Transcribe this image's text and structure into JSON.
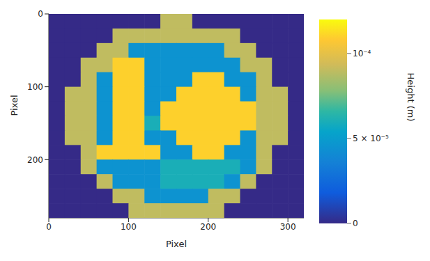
{
  "chart_data": {
    "type": "heatmap",
    "xlabel": "Pixel",
    "ylabel": "Pixel",
    "xlim": [
      0,
      320
    ],
    "ylim": [
      0,
      280
    ],
    "xticks": [
      0,
      100,
      200,
      300
    ],
    "yticks": [
      0,
      100,
      200
    ],
    "cells": {
      "x": [
        10,
        30,
        50,
        70,
        90,
        110,
        130,
        150,
        170,
        190,
        210,
        230,
        250,
        270,
        290,
        310
      ],
      "y": [
        10,
        30,
        50,
        70,
        90,
        110,
        130,
        150,
        170,
        190,
        210,
        230,
        250,
        270
      ],
      "values": [
        [
          0,
          0,
          0,
          0,
          0,
          0,
          0,
          9e-05,
          9e-05,
          0,
          0,
          0,
          0,
          0,
          0,
          0
        ],
        [
          0,
          0,
          0,
          0,
          9e-05,
          9e-05,
          9e-05,
          9e-05,
          9e-05,
          9e-05,
          9e-05,
          9e-05,
          0,
          0,
          0,
          0
        ],
        [
          0,
          0,
          0,
          9e-05,
          9e-05,
          4.5e-05,
          4.5e-05,
          4.5e-05,
          4.5e-05,
          4.5e-05,
          4.5e-05,
          9e-05,
          9e-05,
          0,
          0,
          0
        ],
        [
          0,
          0,
          9e-05,
          9e-05,
          0.00011,
          0.00011,
          4.5e-05,
          4.5e-05,
          4.5e-05,
          4.5e-05,
          4.5e-05,
          4.5e-05,
          9e-05,
          9e-05,
          0,
          0
        ],
        [
          0,
          0,
          9e-05,
          4.5e-05,
          0.00011,
          0.00011,
          4.5e-05,
          4.5e-05,
          4.5e-05,
          0.00011,
          0.00011,
          4.5e-05,
          4.5e-05,
          9e-05,
          0,
          0
        ],
        [
          0,
          9e-05,
          9e-05,
          4.5e-05,
          0.00011,
          0.00011,
          4.5e-05,
          4.5e-05,
          0.00011,
          0.00011,
          0.00011,
          0.00011,
          4.5e-05,
          9e-05,
          9e-05,
          0
        ],
        [
          0,
          9e-05,
          9e-05,
          4.5e-05,
          0.00011,
          0.00011,
          4.5e-05,
          0.00011,
          0.00011,
          0.00011,
          0.00011,
          0.00011,
          0.00011,
          9e-05,
          9e-05,
          0
        ],
        [
          0,
          9e-05,
          9e-05,
          4.5e-05,
          0.00011,
          0.00011,
          6e-05,
          0.00011,
          0.00011,
          0.00011,
          0.00011,
          0.00011,
          0.00011,
          9e-05,
          9e-05,
          0
        ],
        [
          0,
          9e-05,
          9e-05,
          4.5e-05,
          0.00011,
          0.00011,
          4.5e-05,
          4.5e-05,
          0.00011,
          0.00011,
          0.00011,
          0.00011,
          4.5e-05,
          9e-05,
          9e-05,
          0
        ],
        [
          0,
          0,
          9e-05,
          0.00011,
          0.00011,
          0.00011,
          0.00011,
          4.5e-05,
          4.5e-05,
          0.00011,
          0.00011,
          4.5e-05,
          4.5e-05,
          9e-05,
          0,
          0
        ],
        [
          0,
          0,
          9e-05,
          4.5e-05,
          4.5e-05,
          4.5e-05,
          4.5e-05,
          6e-05,
          6e-05,
          6e-05,
          6e-05,
          6e-05,
          4.5e-05,
          9e-05,
          0,
          0
        ],
        [
          0,
          0,
          0,
          9e-05,
          4.5e-05,
          4.5e-05,
          4.5e-05,
          6e-05,
          6e-05,
          6e-05,
          6e-05,
          4.5e-05,
          9e-05,
          0,
          0,
          0
        ],
        [
          0,
          0,
          0,
          0,
          9e-05,
          9e-05,
          4.5e-05,
          4.5e-05,
          4.5e-05,
          4.5e-05,
          9e-05,
          9e-05,
          0,
          0,
          0,
          0
        ],
        [
          0,
          0,
          0,
          0,
          0,
          9e-05,
          9e-05,
          9e-05,
          9e-05,
          9e-05,
          9e-05,
          0,
          0,
          0,
          0,
          0
        ]
      ]
    },
    "colorbar": {
      "label": "Height (m)",
      "range": [
        0,
        0.00012
      ],
      "ticks": [
        0,
        {
          "value": 5e-05,
          "label": "5 × 10⁻⁵"
        },
        {
          "value": 0.0001,
          "label": "10⁻⁴"
        }
      ]
    }
  }
}
